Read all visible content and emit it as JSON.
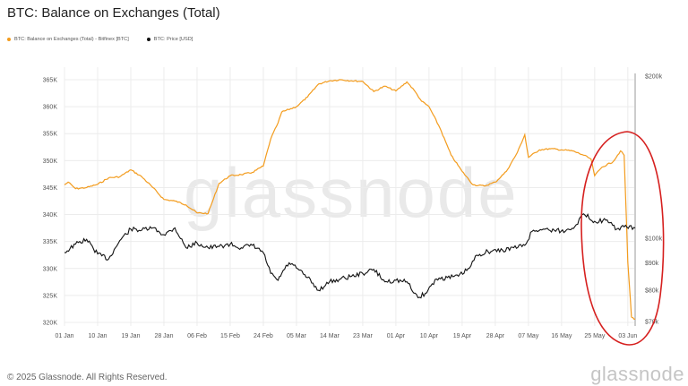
{
  "header": {
    "title": "BTC: Balance on Exchanges (Total)"
  },
  "watermark": "glassnode",
  "footer": {
    "copyright": "© 2025 Glassnode. All Rights Reserved.",
    "brand": "glassnode"
  },
  "colors": {
    "balance": "#f39c1e",
    "price": "#111111",
    "annotation": "#d6201f",
    "grid": "#ececec"
  },
  "chart_data": {
    "type": "line",
    "title": "BTC: Balance on Exchanges (Total)",
    "legend_placement": "top-left",
    "grid": true,
    "x_ticks": [
      "01 Jan",
      "10 Jan",
      "19 Jan",
      "28 Jan",
      "06 Feb",
      "15 Feb",
      "24 Feb",
      "05 Mar",
      "14 Mar",
      "23 Mar",
      "01 Apr",
      "10 Apr",
      "19 Apr",
      "28 Apr",
      "07 May",
      "16 May",
      "25 May",
      "03 Jun"
    ],
    "left_axis": {
      "ticks": [
        "320K",
        "325K",
        "330K",
        "335K",
        "340K",
        "345K",
        "350K",
        "355K",
        "360K",
        "365K"
      ],
      "ylim": [
        320000,
        365000
      ]
    },
    "right_axis": {
      "ticks": [
        "$70k",
        "$80k",
        "$90k",
        "$100k",
        "$200k"
      ],
      "scale": "log"
    },
    "series": [
      {
        "name": "BTC: Balance on Exchanges (Total) - Bitfinex [BTC]",
        "axis": "left",
        "points": [
          [
            "01 Jan",
            345500
          ],
          [
            "02 Jan",
            346000
          ],
          [
            "04 Jan",
            344800
          ],
          [
            "07 Jan",
            345000
          ],
          [
            "10 Jan",
            345600
          ],
          [
            "13 Jan",
            346800
          ],
          [
            "16 Jan",
            347000
          ],
          [
            "19 Jan",
            348300
          ],
          [
            "22 Jan",
            347000
          ],
          [
            "25 Jan",
            345000
          ],
          [
            "28 Jan",
            342800
          ],
          [
            "31 Jan",
            342500
          ],
          [
            "03 Feb",
            341800
          ],
          [
            "06 Feb",
            340300
          ],
          [
            "09 Feb",
            340200
          ],
          [
            "12 Feb",
            345800
          ],
          [
            "15 Feb",
            347200
          ],
          [
            "18 Feb",
            347400
          ],
          [
            "21 Feb",
            347800
          ],
          [
            "24 Feb",
            349000
          ],
          [
            "26 Feb",
            354000
          ],
          [
            "28 Feb",
            357000
          ],
          [
            "01 Mar",
            359000
          ],
          [
            "05 Mar",
            360000
          ],
          [
            "08 Mar",
            361800
          ],
          [
            "11 Mar",
            364200
          ],
          [
            "14 Mar",
            364800
          ],
          [
            "17 Mar",
            365000
          ],
          [
            "20 Mar",
            364800
          ],
          [
            "23 Mar",
            364700
          ],
          [
            "26 Mar",
            362800
          ],
          [
            "29 Mar",
            363800
          ],
          [
            "01 Apr",
            362900
          ],
          [
            "04 Apr",
            364600
          ],
          [
            "06 Apr",
            363000
          ],
          [
            "08 Apr",
            361000
          ],
          [
            "10 Apr",
            360000
          ],
          [
            "13 Apr",
            356000
          ],
          [
            "16 Apr",
            351000
          ],
          [
            "19 Apr",
            348000
          ],
          [
            "22 Apr",
            345500
          ],
          [
            "25 Apr",
            345300
          ],
          [
            "28 Apr",
            346000
          ],
          [
            "01 May",
            348000
          ],
          [
            "04 May",
            351500
          ],
          [
            "06 May",
            354800
          ],
          [
            "07 May",
            350600
          ],
          [
            "10 May",
            352000
          ],
          [
            "13 May",
            352200
          ],
          [
            "16 May",
            352000
          ],
          [
            "19 May",
            351800
          ],
          [
            "22 May",
            351000
          ],
          [
            "24 May",
            350300
          ],
          [
            "25 May",
            347200
          ],
          [
            "27 May",
            348800
          ],
          [
            "30 May",
            349800
          ],
          [
            "01 Jun",
            351800
          ],
          [
            "02 Jun",
            351000
          ],
          [
            "03 Jun",
            331200
          ],
          [
            "04 Jun",
            321000
          ],
          [
            "05 Jun",
            320600
          ]
        ]
      },
      {
        "name": "BTC: Price [USD]",
        "axis": "right",
        "points": [
          [
            "01 Jan",
            94000
          ],
          [
            "04 Jan",
            97500
          ],
          [
            "07 Jan",
            99500
          ],
          [
            "10 Jan",
            93500
          ],
          [
            "13 Jan",
            91500
          ],
          [
            "16 Jan",
            99000
          ],
          [
            "19 Jan",
            104000
          ],
          [
            "22 Jan",
            103500
          ],
          [
            "25 Jan",
            104500
          ],
          [
            "28 Jan",
            101500
          ],
          [
            "31 Jan",
            104500
          ],
          [
            "03 Feb",
            96000
          ],
          [
            "06 Feb",
            98000
          ],
          [
            "09 Feb",
            96000
          ],
          [
            "12 Feb",
            96500
          ],
          [
            "15 Feb",
            97500
          ],
          [
            "18 Feb",
            96000
          ],
          [
            "21 Feb",
            97000
          ],
          [
            "24 Feb",
            94000
          ],
          [
            "26 Feb",
            86000
          ],
          [
            "28 Feb",
            83500
          ],
          [
            "01 Mar",
            86000
          ],
          [
            "03 Mar",
            90000
          ],
          [
            "05 Mar",
            88000
          ],
          [
            "08 Mar",
            84500
          ],
          [
            "11 Mar",
            80000
          ],
          [
            "14 Mar",
            83000
          ],
          [
            "17 Mar",
            84000
          ],
          [
            "20 Mar",
            85000
          ],
          [
            "23 Mar",
            86000
          ],
          [
            "26 Mar",
            87500
          ],
          [
            "29 Mar",
            83000
          ],
          [
            "01 Apr",
            83500
          ],
          [
            "04 Apr",
            83000
          ],
          [
            "07 Apr",
            77500
          ],
          [
            "09 Apr",
            79000
          ],
          [
            "12 Apr",
            84000
          ],
          [
            "15 Apr",
            84500
          ],
          [
            "18 Apr",
            85000
          ],
          [
            "21 Apr",
            88000
          ],
          [
            "23 Apr",
            93000
          ],
          [
            "26 Apr",
            94500
          ],
          [
            "30 Apr",
            95000
          ],
          [
            "03 May",
            96000
          ],
          [
            "06 May",
            97000
          ],
          [
            "08 May",
            103000
          ],
          [
            "11 May",
            104000
          ],
          [
            "14 May",
            103500
          ],
          [
            "17 May",
            103000
          ],
          [
            "20 May",
            106000
          ],
          [
            "22 May",
            111000
          ],
          [
            "25 May",
            107500
          ],
          [
            "28 May",
            108000
          ],
          [
            "31 May",
            104000
          ],
          [
            "02 Jun",
            105000
          ],
          [
            "05 Jun",
            104500
          ]
        ]
      }
    ]
  }
}
